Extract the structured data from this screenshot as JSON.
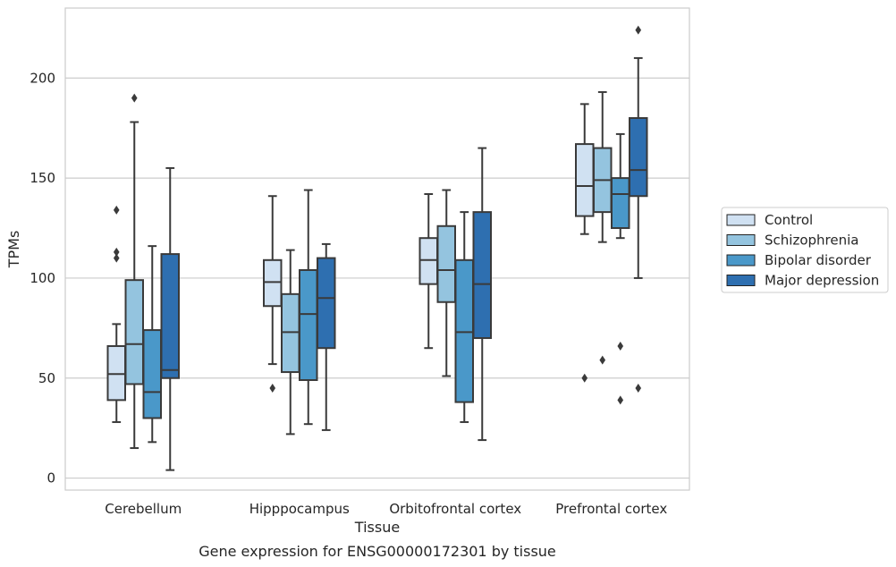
{
  "chart_data": {
    "type": "boxplot",
    "caption": "Gene expression for ENSG00000172301 by tissue",
    "xlabel": "Tissue",
    "ylabel": "TPMs",
    "ylim": [
      -6,
      235
    ],
    "yticks": [
      0,
      50,
      100,
      150,
      200
    ],
    "grid": "horizontal",
    "legend_position": "right",
    "categories": [
      "Cerebellum",
      "Hipppocampus",
      "Orbitofrontal cortex",
      "Prefrontal cortex"
    ],
    "series": [
      {
        "name": "Control",
        "color": "#d0e1f2",
        "boxes": [
          {
            "whisker_low": 28,
            "q1": 39,
            "median": 52,
            "q3": 66,
            "whisker_high": 77,
            "outliers": [
              110,
              113,
              134
            ]
          },
          {
            "whisker_low": 57,
            "q1": 86,
            "median": 98,
            "q3": 109,
            "whisker_high": 141,
            "outliers": [
              45
            ]
          },
          {
            "whisker_low": 65,
            "q1": 97,
            "median": 109,
            "q3": 120,
            "whisker_high": 142,
            "outliers": []
          },
          {
            "whisker_low": 122,
            "q1": 131,
            "median": 146,
            "q3": 167,
            "whisker_high": 187,
            "outliers": [
              50
            ]
          }
        ]
      },
      {
        "name": "Schizophrenia",
        "color": "#94c4df",
        "boxes": [
          {
            "whisker_low": 15,
            "q1": 47,
            "median": 67,
            "q3": 99,
            "whisker_high": 178,
            "outliers": [
              190
            ]
          },
          {
            "whisker_low": 22,
            "q1": 53,
            "median": 73,
            "q3": 92,
            "whisker_high": 114,
            "outliers": []
          },
          {
            "whisker_low": 51,
            "q1": 88,
            "median": 104,
            "q3": 126,
            "whisker_high": 144,
            "outliers": []
          },
          {
            "whisker_low": 118,
            "q1": 133,
            "median": 149,
            "q3": 165,
            "whisker_high": 193,
            "outliers": [
              59
            ]
          }
        ]
      },
      {
        "name": "Bipolar disorder",
        "color": "#4a98c9",
        "boxes": [
          {
            "whisker_low": 18,
            "q1": 30,
            "median": 43,
            "q3": 74,
            "whisker_high": 116,
            "outliers": []
          },
          {
            "whisker_low": 27,
            "q1": 49,
            "median": 82,
            "q3": 104,
            "whisker_high": 144,
            "outliers": []
          },
          {
            "whisker_low": 28,
            "q1": 38,
            "median": 73,
            "q3": 109,
            "whisker_high": 133,
            "outliers": []
          },
          {
            "whisker_low": 120,
            "q1": 125,
            "median": 142,
            "q3": 150,
            "whisker_high": 172,
            "outliers": [
              39,
              66
            ]
          }
        ]
      },
      {
        "name": "Major depression",
        "color": "#2e6fb0",
        "boxes": [
          {
            "whisker_low": 4,
            "q1": 50,
            "median": 54,
            "q3": 112,
            "whisker_high": 155,
            "outliers": []
          },
          {
            "whisker_low": 24,
            "q1": 65,
            "median": 90,
            "q3": 110,
            "whisker_high": 117,
            "outliers": []
          },
          {
            "whisker_low": 19,
            "q1": 70,
            "median": 97,
            "q3": 133,
            "whisker_high": 165,
            "outliers": []
          },
          {
            "whisker_low": 100,
            "q1": 141,
            "median": 154,
            "q3": 180,
            "whisker_high": 210,
            "outliers": [
              45,
              224
            ]
          }
        ]
      }
    ]
  }
}
